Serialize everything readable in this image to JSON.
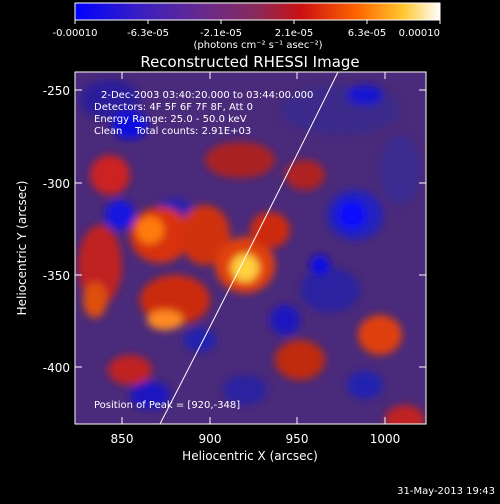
{
  "colorbar": {
    "tick_labels": [
      "-0.00010",
      "-6.3e-05",
      "-2.1e-05",
      "2.1e-05",
      "6.3e-05",
      "0.00010"
    ],
    "unit_label": "(photons cm⁻² s⁻¹ asec⁻²)"
  },
  "title": "Reconstructed RHESSI Image",
  "annotations": {
    "time_range": "2-Dec-2003 03:40:20.000 to 03:44:00.000",
    "detectors": "Detectors: 4F 5F 6F 7F 8F, Att 0",
    "energy_range": "Energy Range: 25.0 - 50.0 keV",
    "method_counts": "Clean    Total counts: 2.91E+03",
    "peak_position": "Position of Peak = [920,-348]"
  },
  "axes": {
    "xlabel": "Heliocentric X (arcsec)",
    "ylabel": "Heliocentric Y (arcsec)",
    "x_ticks": [
      "850",
      "900",
      "950",
      "1000"
    ],
    "y_ticks": [
      "-250",
      "-300",
      "-350",
      "-400"
    ]
  },
  "footer_timestamp": "31-May-2013 19:43",
  "colors": {
    "background": "#000000",
    "limb_line": "#ffffff"
  }
}
